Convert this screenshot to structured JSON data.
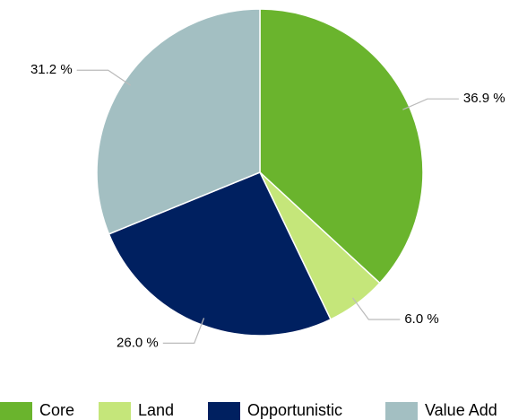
{
  "chart_data": {
    "type": "pie",
    "categories": [
      "Core",
      "Land",
      "Opportunistic",
      "Value Add"
    ],
    "values": [
      36.9,
      6.0,
      26.0,
      31.2
    ],
    "value_labels": [
      "36.9 %",
      "6.0 %",
      "26.0 %",
      "31.2 %"
    ],
    "colors": [
      "#6ab42d",
      "#c5e67a",
      "#002060",
      "#a3bfc2"
    ],
    "legend": "bottom"
  }
}
